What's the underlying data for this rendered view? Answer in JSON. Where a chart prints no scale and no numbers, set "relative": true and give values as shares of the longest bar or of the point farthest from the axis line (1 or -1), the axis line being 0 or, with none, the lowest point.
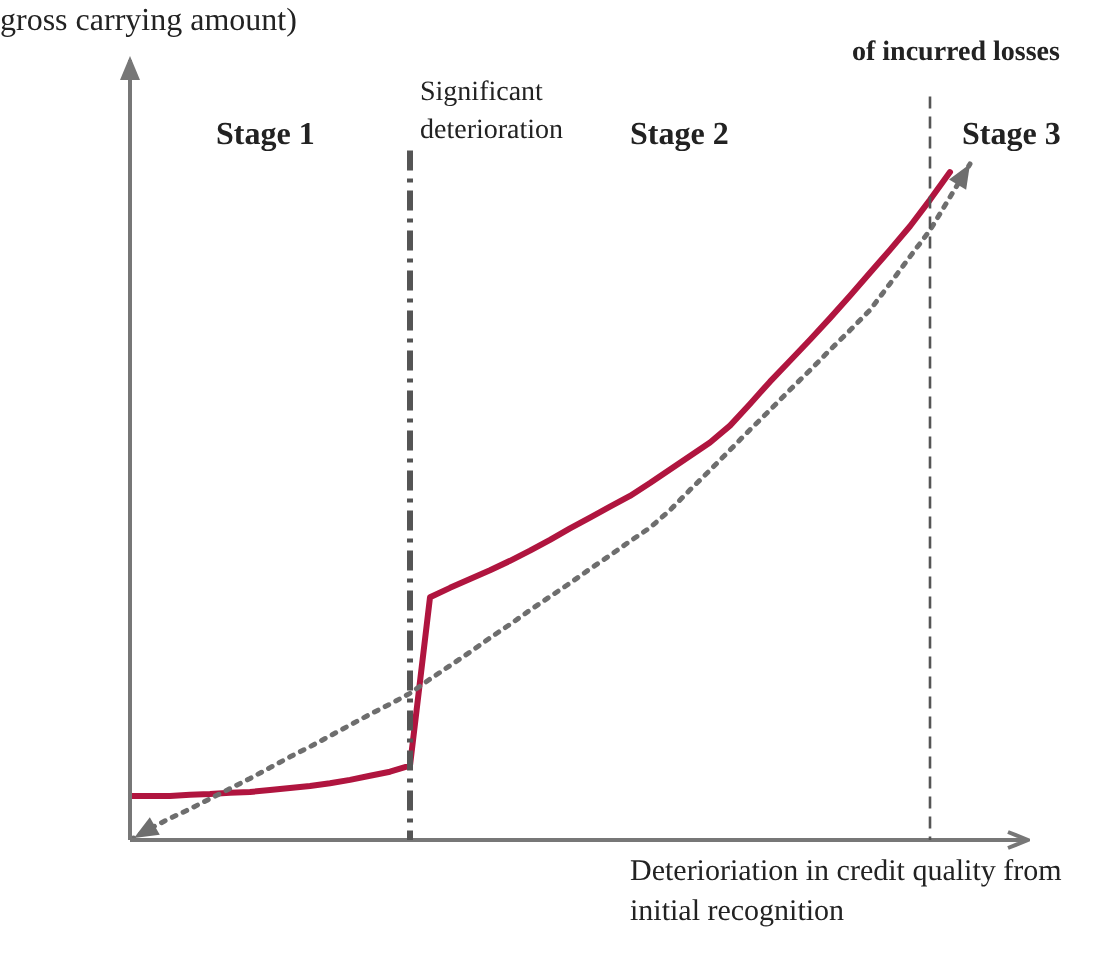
{
  "chart_data": {
    "type": "line",
    "relative": true,
    "ylabel": "gross carrying amount)",
    "xlabel": "Deterioriation in credit quality from initial recognition",
    "annotations": [
      "of incurred losses",
      "Stage 1",
      "Significant deterioration",
      "Stage 2",
      "Stage 3"
    ],
    "categories": [
      null,
      null,
      null,
      null,
      null,
      null,
      null,
      null,
      null,
      null,
      null,
      null,
      null,
      null,
      null,
      null,
      null,
      null,
      null,
      null,
      null,
      null,
      null,
      null,
      null,
      null,
      null,
      null,
      null,
      null,
      null,
      null,
      null,
      null,
      null,
      null,
      null,
      null,
      null,
      null,
      null,
      null,
      null,
      null,
      null
    ],
    "series": [
      {
        "color": "#b0153f",
        "line_style": "solid",
        "values": [
          0.065,
          0.065,
          0.065,
          0.067,
          0.068,
          0.07,
          0.071,
          0.074,
          0.077,
          0.08,
          0.084,
          0.089,
          0.095,
          0.101,
          0.11,
          0.359,
          0.373,
          0.386,
          0.399,
          0.413,
          0.428,
          0.444,
          0.461,
          0.477,
          0.493,
          0.509,
          0.528,
          0.548,
          0.568,
          0.588,
          0.613,
          0.645,
          0.678,
          0.709,
          0.74,
          0.772,
          0.805,
          0.839,
          0.873,
          0.908,
          0.947,
          0.988,
          null,
          null,
          null
        ]
      },
      {
        "color": "#6e6e6e",
        "line_style": "dotted",
        "values": [
          0,
          0.017,
          0.032,
          0.046,
          0.061,
          0.076,
          0.091,
          0.107,
          0.123,
          0.138,
          0.154,
          0.17,
          0.186,
          0.201,
          0.217,
          0.238,
          0.258,
          0.278,
          0.299,
          0.319,
          0.34,
          0.36,
          0.38,
          0.401,
          0.421,
          0.442,
          0.462,
          0.488,
          0.518,
          0.547,
          0.577,
          0.607,
          0.636,
          0.666,
          0.695,
          0.725,
          0.754,
          0.784,
          0.823,
          0.863,
          0.902,
          0.951,
          1.0,
          null,
          null
        ]
      }
    ]
  }
}
